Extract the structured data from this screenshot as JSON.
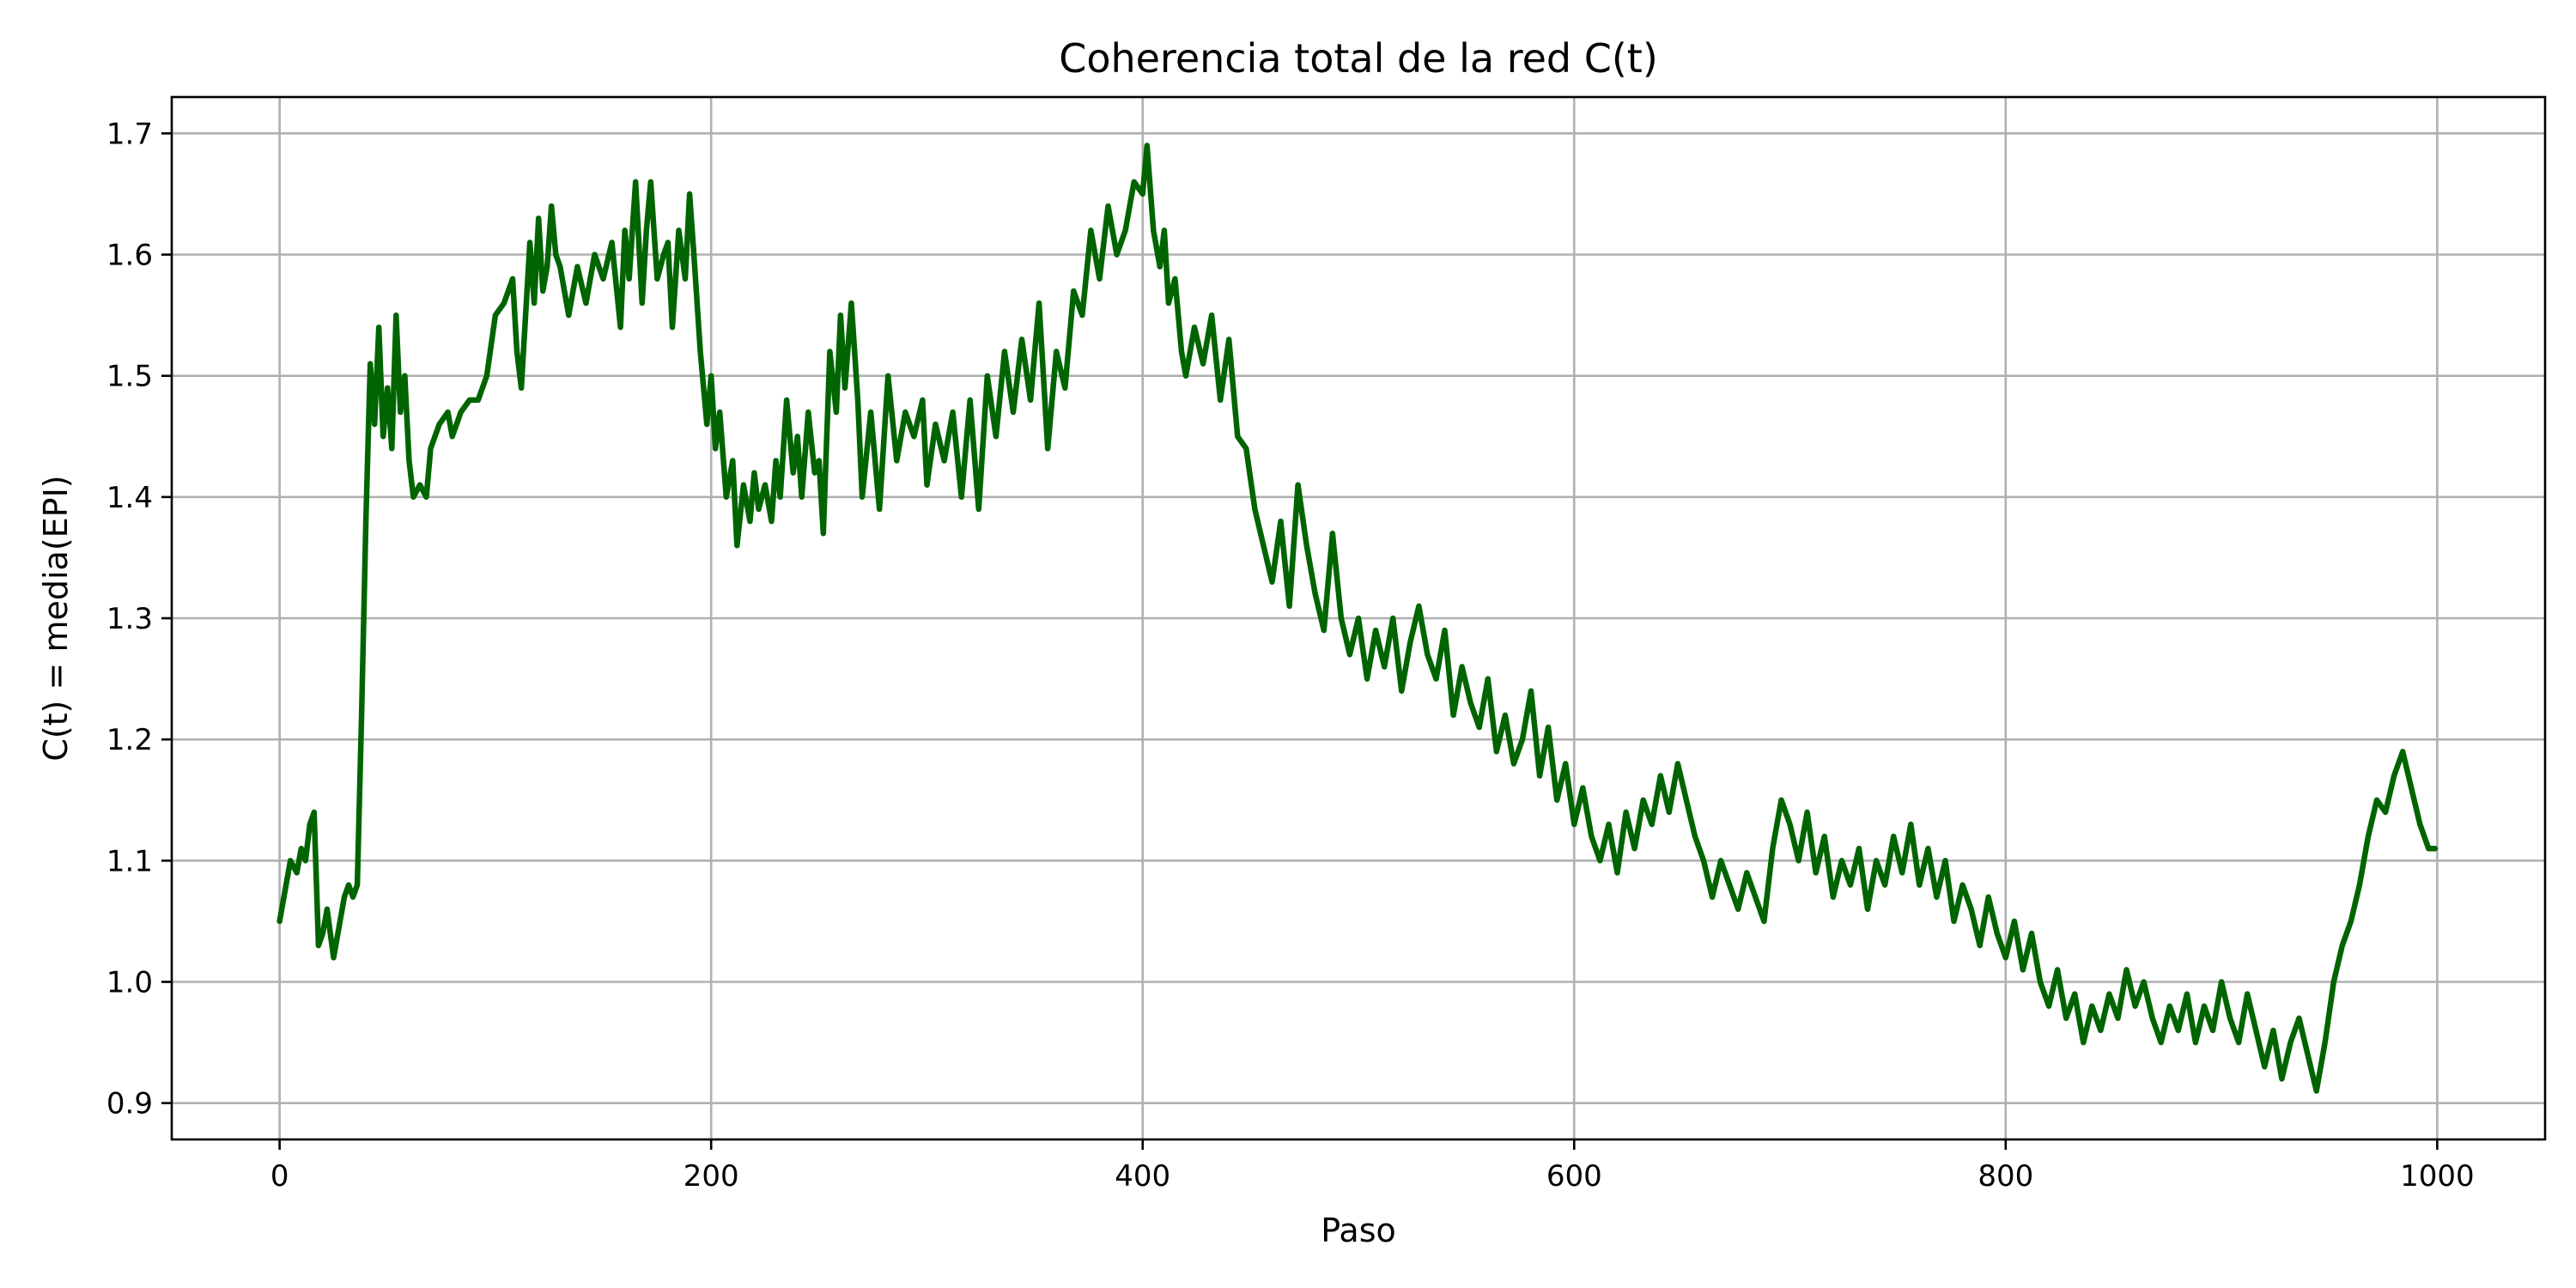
{
  "chart_data": {
    "type": "line",
    "title": "Coherencia total de la red C(t)",
    "xlabel": "Paso",
    "ylabel": "C(t) = media(EPI)",
    "xlim": [
      -50,
      1050
    ],
    "ylim": [
      0.87,
      1.73
    ],
    "xticks": [
      0,
      200,
      400,
      600,
      800,
      1000
    ],
    "xtick_labels": [
      "0",
      "200",
      "400",
      "600",
      "800",
      "1000"
    ],
    "yticks": [
      0.9,
      1.0,
      1.1,
      1.2,
      1.3,
      1.4,
      1.5,
      1.6,
      1.7
    ],
    "ytick_labels": [
      "0.9",
      "1.0",
      "1.1",
      "1.2",
      "1.3",
      "1.4",
      "1.5",
      "1.6",
      "1.7"
    ],
    "grid": true,
    "legend": false,
    "series": [
      {
        "color": "#006400",
        "x": [
          0,
          5,
          8,
          10,
          12,
          14,
          16,
          18,
          20,
          22,
          25,
          28,
          30,
          32,
          34,
          36,
          38,
          40,
          42,
          44,
          46,
          48,
          50,
          52,
          54,
          56,
          58,
          60,
          62,
          65,
          68,
          70,
          74,
          78,
          80,
          84,
          88,
          92,
          96,
          100,
          104,
          108,
          110,
          112,
          114,
          116,
          118,
          120,
          122,
          124,
          126,
          128,
          130,
          134,
          138,
          142,
          146,
          150,
          154,
          158,
          160,
          162,
          165,
          168,
          170,
          172,
          175,
          178,
          180,
          182,
          185,
          188,
          190,
          192,
          195,
          198,
          200,
          202,
          204,
          207,
          210,
          212,
          215,
          218,
          220,
          222,
          225,
          228,
          230,
          232,
          235,
          238,
          240,
          242,
          245,
          248,
          250,
          252,
          255,
          258,
          260,
          262,
          265,
          268,
          270,
          274,
          278,
          282,
          286,
          290,
          294,
          298,
          300,
          304,
          308,
          312,
          316,
          320,
          324,
          328,
          332,
          336,
          340,
          344,
          348,
          352,
          356,
          360,
          364,
          368,
          372,
          376,
          380,
          384,
          388,
          392,
          396,
          400,
          402,
          405,
          408,
          410,
          412,
          415,
          418,
          420,
          424,
          428,
          432,
          436,
          440,
          444,
          448,
          452,
          456,
          460,
          464,
          468,
          472,
          476,
          480,
          484,
          488,
          492,
          496,
          500,
          504,
          508,
          512,
          516,
          520,
          524,
          528,
          532,
          536,
          540,
          544,
          548,
          552,
          556,
          560,
          564,
          568,
          572,
          576,
          580,
          584,
          588,
          592,
          596,
          600,
          604,
          608,
          612,
          616,
          620,
          624,
          628,
          632,
          636,
          640,
          644,
          648,
          652,
          656,
          660,
          664,
          668,
          672,
          676,
          680,
          684,
          688,
          692,
          696,
          700,
          704,
          708,
          712,
          716,
          720,
          724,
          728,
          732,
          736,
          740,
          744,
          748,
          752,
          756,
          760,
          764,
          768,
          772,
          776,
          780,
          784,
          788,
          792,
          796,
          800,
          804,
          808,
          812,
          816,
          820,
          824,
          828,
          832,
          836,
          840,
          844,
          848,
          852,
          856,
          860,
          864,
          868,
          872,
          876,
          880,
          884,
          888,
          892,
          896,
          900,
          904,
          908,
          912,
          916,
          920,
          924,
          928,
          932,
          936,
          940,
          944,
          948,
          952,
          956,
          960,
          964,
          968,
          972,
          976,
          980,
          984,
          988,
          992,
          996,
          999
        ],
        "y": [
          1.05,
          1.1,
          1.09,
          1.11,
          1.1,
          1.13,
          1.14,
          1.03,
          1.04,
          1.06,
          1.02,
          1.05,
          1.07,
          1.08,
          1.07,
          1.08,
          1.22,
          1.38,
          1.51,
          1.46,
          1.54,
          1.45,
          1.49,
          1.44,
          1.55,
          1.47,
          1.5,
          1.43,
          1.4,
          1.41,
          1.4,
          1.44,
          1.46,
          1.47,
          1.45,
          1.47,
          1.48,
          1.48,
          1.5,
          1.55,
          1.56,
          1.58,
          1.52,
          1.49,
          1.55,
          1.61,
          1.56,
          1.63,
          1.57,
          1.59,
          1.64,
          1.6,
          1.59,
          1.55,
          1.59,
          1.56,
          1.6,
          1.58,
          1.61,
          1.54,
          1.62,
          1.58,
          1.66,
          1.56,
          1.62,
          1.66,
          1.58,
          1.6,
          1.61,
          1.54,
          1.62,
          1.58,
          1.65,
          1.6,
          1.52,
          1.46,
          1.5,
          1.44,
          1.47,
          1.4,
          1.43,
          1.36,
          1.41,
          1.38,
          1.42,
          1.39,
          1.41,
          1.38,
          1.43,
          1.4,
          1.48,
          1.42,
          1.45,
          1.4,
          1.47,
          1.42,
          1.43,
          1.37,
          1.52,
          1.47,
          1.55,
          1.49,
          1.56,
          1.48,
          1.4,
          1.47,
          1.39,
          1.5,
          1.43,
          1.47,
          1.45,
          1.48,
          1.41,
          1.46,
          1.43,
          1.47,
          1.4,
          1.48,
          1.39,
          1.5,
          1.45,
          1.52,
          1.47,
          1.53,
          1.48,
          1.56,
          1.44,
          1.52,
          1.49,
          1.57,
          1.55,
          1.62,
          1.58,
          1.64,
          1.6,
          1.62,
          1.66,
          1.65,
          1.69,
          1.62,
          1.59,
          1.62,
          1.56,
          1.58,
          1.52,
          1.5,
          1.54,
          1.51,
          1.55,
          1.48,
          1.53,
          1.45,
          1.44,
          1.39,
          1.36,
          1.33,
          1.38,
          1.31,
          1.41,
          1.36,
          1.32,
          1.29,
          1.37,
          1.3,
          1.27,
          1.3,
          1.25,
          1.29,
          1.26,
          1.3,
          1.24,
          1.28,
          1.31,
          1.27,
          1.25,
          1.29,
          1.22,
          1.26,
          1.23,
          1.21,
          1.25,
          1.19,
          1.22,
          1.18,
          1.2,
          1.24,
          1.17,
          1.21,
          1.15,
          1.18,
          1.13,
          1.16,
          1.12,
          1.1,
          1.13,
          1.09,
          1.14,
          1.11,
          1.15,
          1.13,
          1.17,
          1.14,
          1.18,
          1.15,
          1.12,
          1.1,
          1.07,
          1.1,
          1.08,
          1.06,
          1.09,
          1.07,
          1.05,
          1.11,
          1.15,
          1.13,
          1.1,
          1.14,
          1.09,
          1.12,
          1.07,
          1.1,
          1.08,
          1.11,
          1.06,
          1.1,
          1.08,
          1.12,
          1.09,
          1.13,
          1.08,
          1.11,
          1.07,
          1.1,
          1.05,
          1.08,
          1.06,
          1.03,
          1.07,
          1.04,
          1.02,
          1.05,
          1.01,
          1.04,
          1.0,
          0.98,
          1.01,
          0.97,
          0.99,
          0.95,
          0.98,
          0.96,
          0.99,
          0.97,
          1.01,
          0.98,
          1.0,
          0.97,
          0.95,
          0.98,
          0.96,
          0.99,
          0.95,
          0.98,
          0.96,
          1.0,
          0.97,
          0.95,
          0.99,
          0.96,
          0.93,
          0.96,
          0.92,
          0.95,
          0.97,
          0.94,
          0.91,
          0.95,
          1.0,
          1.03,
          1.05,
          1.08,
          1.12,
          1.15,
          1.14,
          1.17,
          1.19,
          1.16,
          1.13,
          1.11,
          1.11
        ]
      }
    ]
  }
}
